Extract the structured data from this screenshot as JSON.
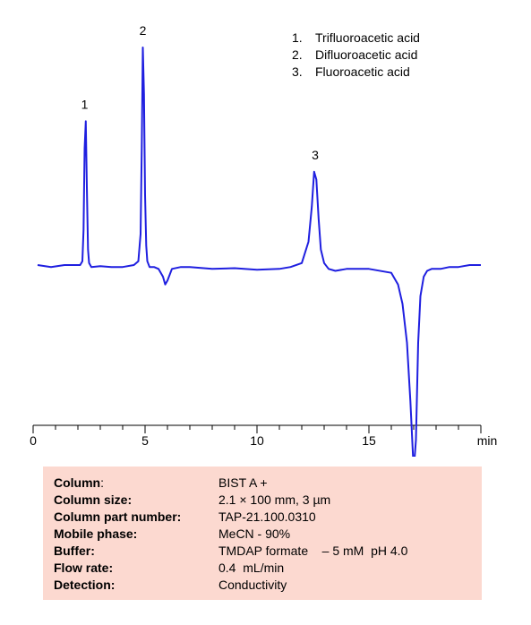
{
  "chart_data": {
    "type": "line",
    "xlabel": "min",
    "xlim": [
      0,
      20
    ],
    "x_ticks": [
      0,
      5,
      10,
      15
    ],
    "series": [
      {
        "color": "#1f1fe0",
        "x": [
          0.2,
          0.8,
          1.4,
          1.9,
          2.1,
          2.2,
          2.25,
          2.3,
          2.35,
          2.4,
          2.45,
          2.5,
          2.6,
          3.0,
          3.5,
          4.0,
          4.5,
          4.7,
          4.8,
          4.85,
          4.9,
          4.95,
          5.0,
          5.05,
          5.1,
          5.2,
          5.4,
          5.6,
          5.8,
          5.9,
          6.0,
          6.2,
          6.6,
          7.0,
          8.0,
          9.0,
          10.0,
          11.0,
          11.5,
          12.0,
          12.3,
          12.45,
          12.55,
          12.65,
          12.75,
          12.85,
          13.0,
          13.2,
          13.5,
          14.0,
          15.0,
          16.0,
          16.3,
          16.5,
          16.7,
          16.85,
          17.0,
          17.1,
          17.2,
          17.3,
          17.45,
          17.6,
          17.8,
          18.2,
          18.6,
          19.0,
          19.5,
          20.0
        ],
        "y": [
          0.0,
          -0.05,
          0.0,
          0.0,
          0.0,
          0.1,
          0.9,
          3.0,
          3.7,
          2.0,
          0.4,
          0.05,
          -0.05,
          -0.03,
          -0.05,
          -0.05,
          0.0,
          0.1,
          0.8,
          3.0,
          5.6,
          4.4,
          1.8,
          0.5,
          0.1,
          -0.05,
          -0.05,
          -0.1,
          -0.3,
          -0.5,
          -0.4,
          -0.1,
          -0.05,
          -0.05,
          -0.1,
          -0.08,
          -0.12,
          -0.1,
          -0.05,
          0.05,
          0.6,
          1.5,
          2.4,
          2.2,
          1.2,
          0.4,
          0.05,
          -0.1,
          -0.15,
          -0.1,
          -0.1,
          -0.2,
          -0.5,
          -1.0,
          -2.0,
          -3.5,
          -5.3,
          -4.5,
          -2.0,
          -0.8,
          -0.3,
          -0.15,
          -0.1,
          -0.1,
          -0.05,
          -0.05,
          0.0,
          0.0
        ]
      }
    ],
    "peak_labels": [
      {
        "text": "1",
        "x": 2.3,
        "y": 3.7
      },
      {
        "text": "2",
        "x": 4.9,
        "y": 5.6
      },
      {
        "text": "3",
        "x": 12.6,
        "y": 2.4
      }
    ],
    "legend": [
      {
        "num": "1.",
        "label": "Trifluoroacetic acid"
      },
      {
        "num": "2.",
        "label": "Difluoroacetic acid"
      },
      {
        "num": "3.",
        "label": "Fluoroacetic acid"
      }
    ],
    "legend_position": "top-right",
    "grid": false
  },
  "conditions": {
    "background_color": "#fcd9d0",
    "rows": [
      {
        "label": "Column",
        "label_suffix": ":",
        "value": "BIST A +"
      },
      {
        "label": "Column size:",
        "value": "2.1 × 100 mm, 3 µm"
      },
      {
        "label": "Column part number:",
        "value": "TAP-21.100.0310"
      },
      {
        "label": "Mobile phase:",
        "value": "MeCN  - 90%"
      },
      {
        "label": "Buffer:",
        "value": "TMDAP formate    – 5 mM  pH 4.0"
      },
      {
        "label": "Flow rate:",
        "value": "0.4  mL/min"
      },
      {
        "label": "Detection:",
        "value": "Conductivity"
      }
    ]
  }
}
